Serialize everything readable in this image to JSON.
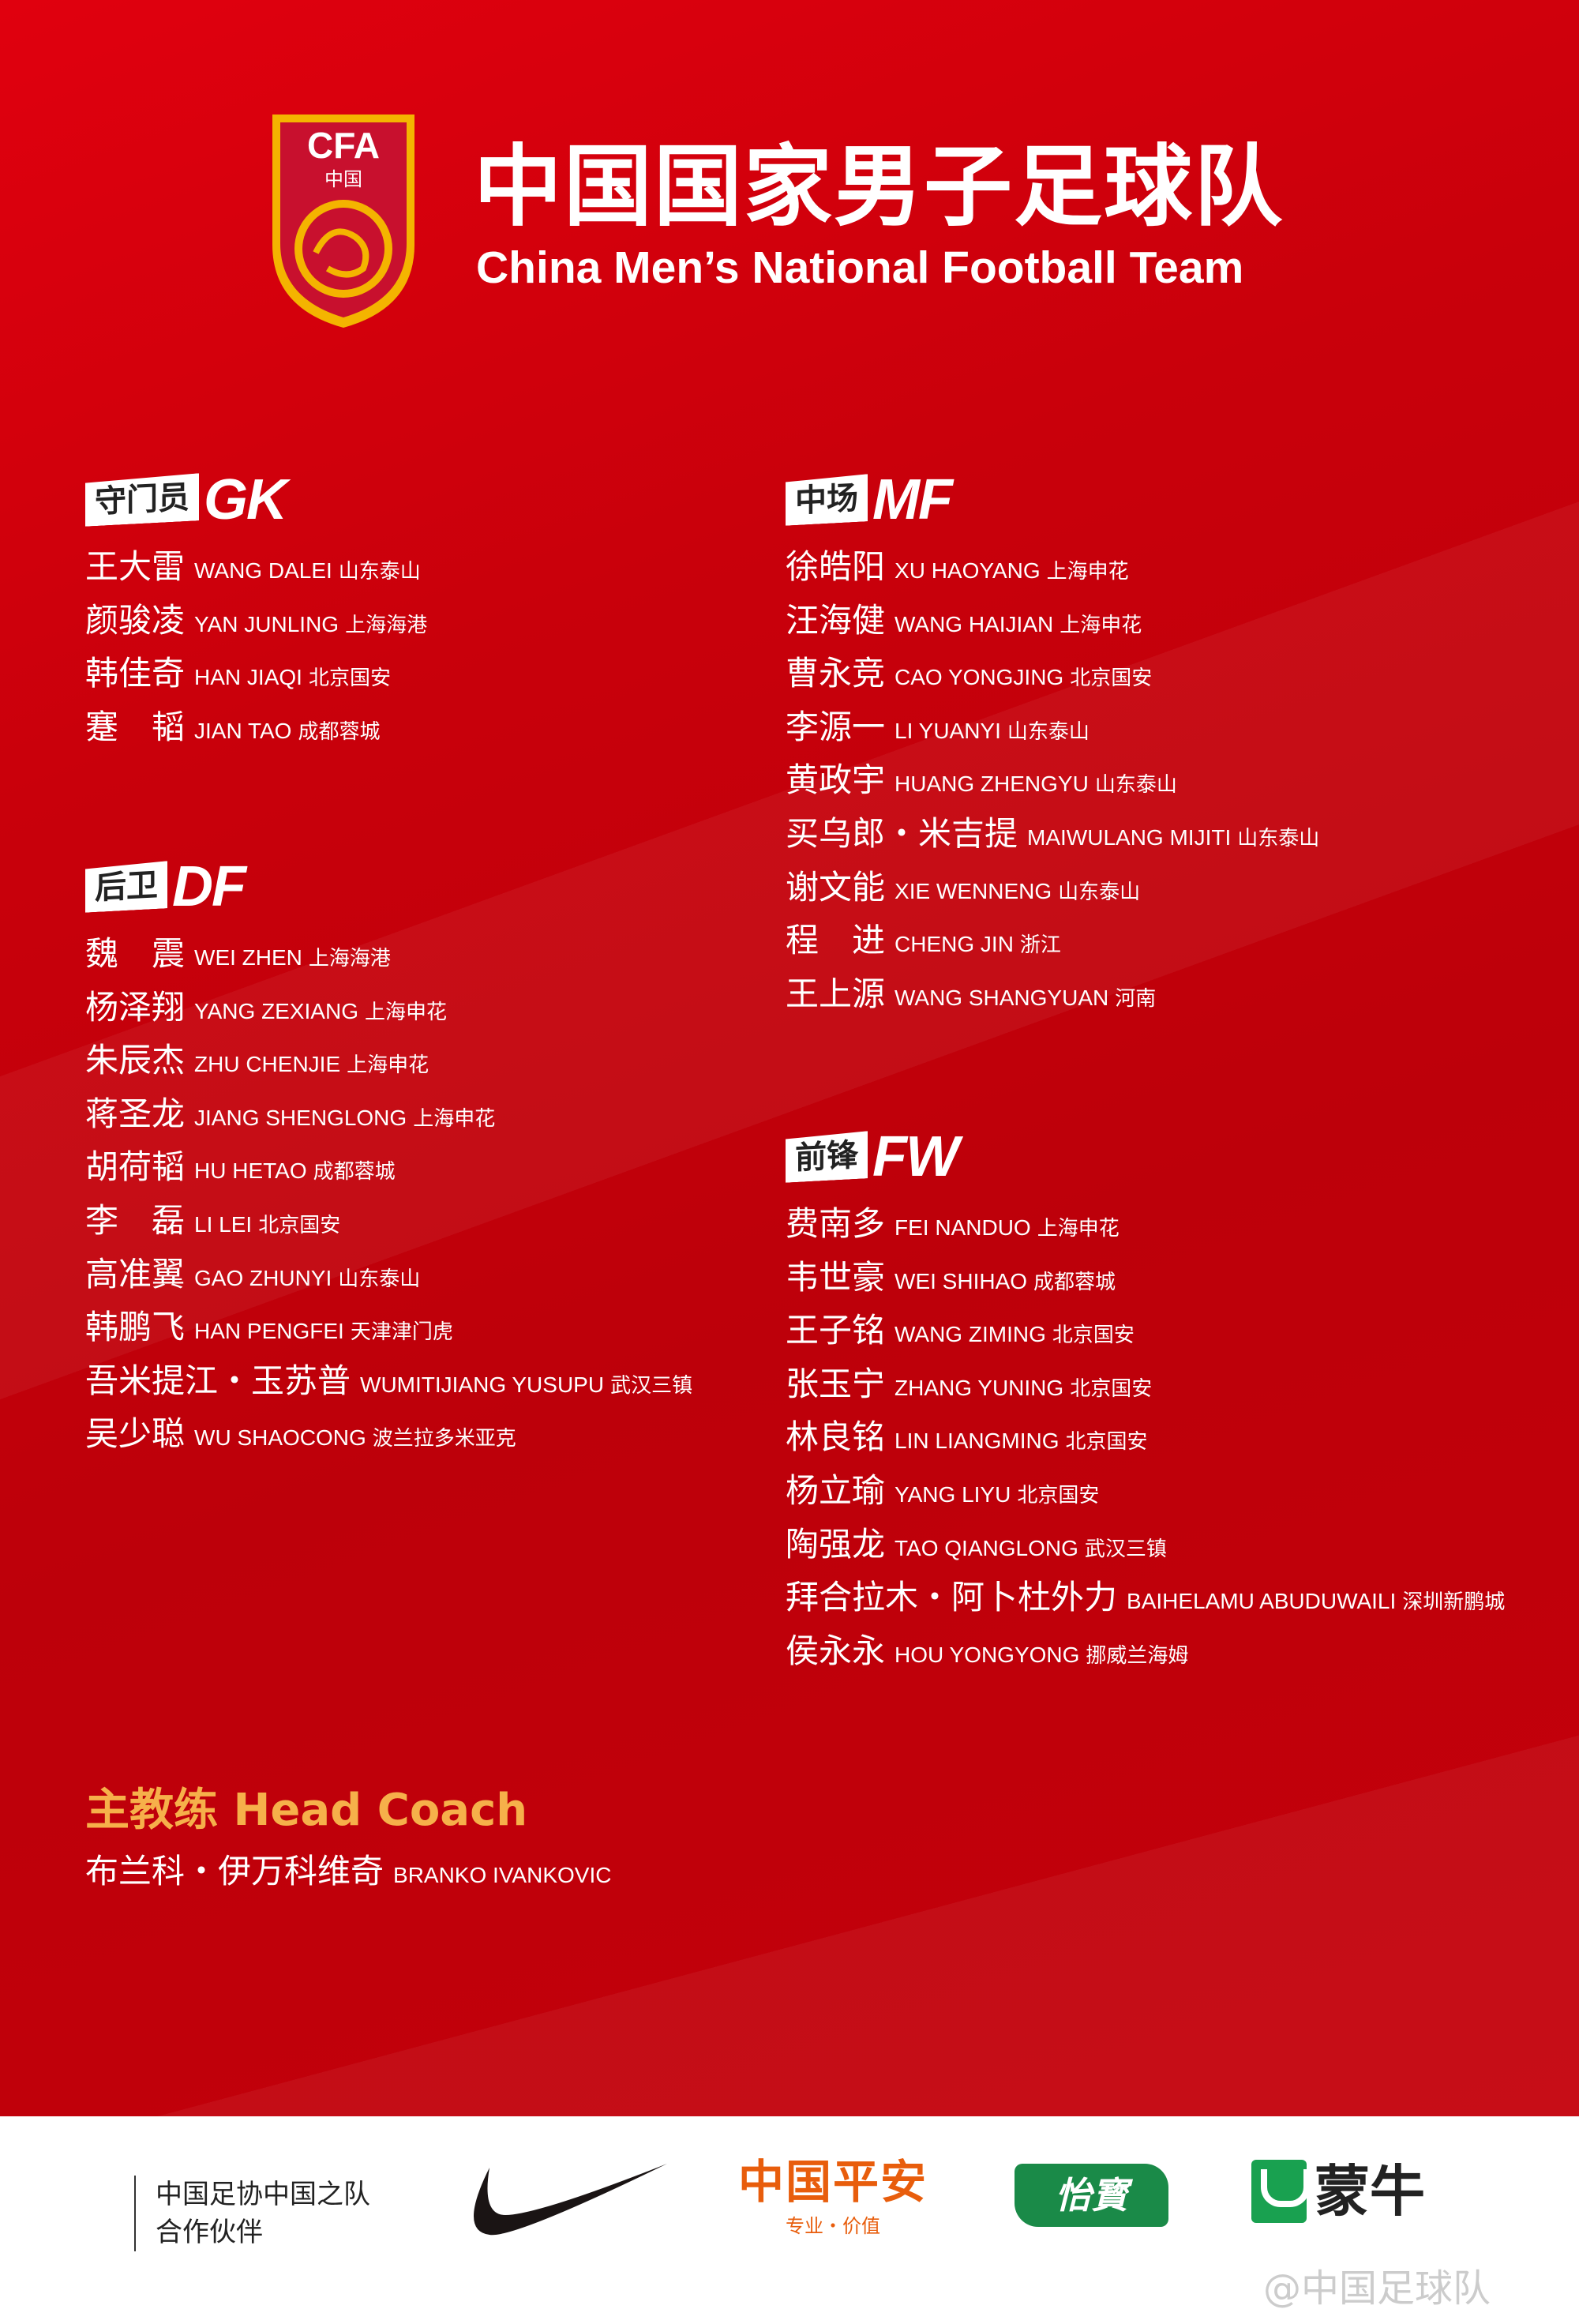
{
  "header": {
    "title_cn": "中国国家男子足球队",
    "title_en": "China Men’s National Football Team",
    "logo_text": "CFA 中国"
  },
  "sections": [
    {
      "id": "gk",
      "label_cn": "守门员",
      "label_en": "GK",
      "players": [
        {
          "cn": "王大雷",
          "en": "WANG DALEI",
          "club": "山东泰山"
        },
        {
          "cn": "颜骏凌",
          "en": "YAN JUNLING",
          "club": "上海海港"
        },
        {
          "cn": "韩佳奇",
          "en": "HAN JIAQI",
          "club": "北京国安"
        },
        {
          "cn": "蹇　韬",
          "en": "JIAN TAO",
          "club": "成都蓉城"
        }
      ]
    },
    {
      "id": "df",
      "label_cn": "后卫",
      "label_en": "DF",
      "players": [
        {
          "cn": "魏　震",
          "en": "WEI ZHEN",
          "club": "上海海港"
        },
        {
          "cn": "杨泽翔",
          "en": "YANG ZEXIANG",
          "club": "上海申花"
        },
        {
          "cn": "朱辰杰",
          "en": "ZHU CHENJIE",
          "club": "上海申花"
        },
        {
          "cn": "蒋圣龙",
          "en": "JIANG SHENGLONG",
          "club": "上海申花"
        },
        {
          "cn": "胡荷韬",
          "en": "HU HETAO",
          "club": "成都蓉城"
        },
        {
          "cn": "李　磊",
          "en": "LI LEI",
          "club": "北京国安"
        },
        {
          "cn": "高准翼",
          "en": "GAO ZHUNYI",
          "club": "山东泰山"
        },
        {
          "cn": "韩鹏飞",
          "en": "HAN PENGFEI",
          "club": "天津津门虎"
        },
        {
          "cn": "吾米提江・玉苏普",
          "en": "WUMITIJIANG YUSUPU",
          "club": "武汉三镇"
        },
        {
          "cn": "吴少聪",
          "en": "WU SHAOCONG",
          "club": "波兰拉多米亚克"
        }
      ]
    },
    {
      "id": "mf",
      "label_cn": "中场",
      "label_en": "MF",
      "players": [
        {
          "cn": "徐皓阳",
          "en": "XU HAOYANG",
          "club": "上海申花"
        },
        {
          "cn": "汪海健",
          "en": "WANG HAIJIAN",
          "club": "上海申花"
        },
        {
          "cn": "曹永竞",
          "en": "CAO YONGJING",
          "club": "北京国安"
        },
        {
          "cn": "李源一",
          "en": "LI YUANYI",
          "club": "山东泰山"
        },
        {
          "cn": "黄政宇",
          "en": "HUANG ZHENGYU",
          "club": "山东泰山"
        },
        {
          "cn": "买乌郎・米吉提",
          "en": "MAIWULANG MIJITI",
          "club": "山东泰山"
        },
        {
          "cn": "谢文能",
          "en": "XIE WENNENG",
          "club": "山东泰山"
        },
        {
          "cn": "程　进",
          "en": "CHENG JIN",
          "club": "浙江"
        },
        {
          "cn": "王上源",
          "en": "WANG SHANGYUAN",
          "club": "河南"
        }
      ]
    },
    {
      "id": "fw",
      "label_cn": "前锋",
      "label_en": "FW",
      "players": [
        {
          "cn": "费南多",
          "en": "FEI NANDUO",
          "club": "上海申花"
        },
        {
          "cn": "韦世豪",
          "en": "WEI SHIHAO",
          "club": "成都蓉城"
        },
        {
          "cn": "王子铭",
          "en": "WANG ZIMING",
          "club": "北京国安"
        },
        {
          "cn": "张玉宁",
          "en": "ZHANG YUNING",
          "club": "北京国安"
        },
        {
          "cn": "林良铭",
          "en": "LIN LIANGMING",
          "club": "北京国安"
        },
        {
          "cn": "杨立瑜",
          "en": "YANG LIYU",
          "club": "北京国安"
        },
        {
          "cn": "陶强龙",
          "en": "TAO QIANGLONG",
          "club": "武汉三镇"
        },
        {
          "cn": "拜合拉木・阿卜杜外力",
          "en": "BAIHELAMU ABUDUWAILI",
          "club": "深圳新鹏城"
        },
        {
          "cn": "侯永永",
          "en": "HOU YONGYONG",
          "club": "挪威兰海姆"
        }
      ]
    }
  ],
  "coach": {
    "title": "主教练 Head Coach",
    "cn": "布兰科・伊万科维奇",
    "en": "BRANKO IVANKOVIC"
  },
  "footer": {
    "partner_line1": "中国足协中国之队",
    "partner_line2": "合作伙伴",
    "pingan": "中国平安",
    "pingan_slogan": "专业・价值",
    "yibao": "怡寳",
    "mengniu": "蒙牛",
    "weibo": "@中国足球队"
  },
  "colors": {
    "background": "#c9000b",
    "coach_title": "#f6b04a",
    "pingan": "#e85d0c",
    "yibao": "#1a8a48",
    "mengniu": "#19a150"
  }
}
